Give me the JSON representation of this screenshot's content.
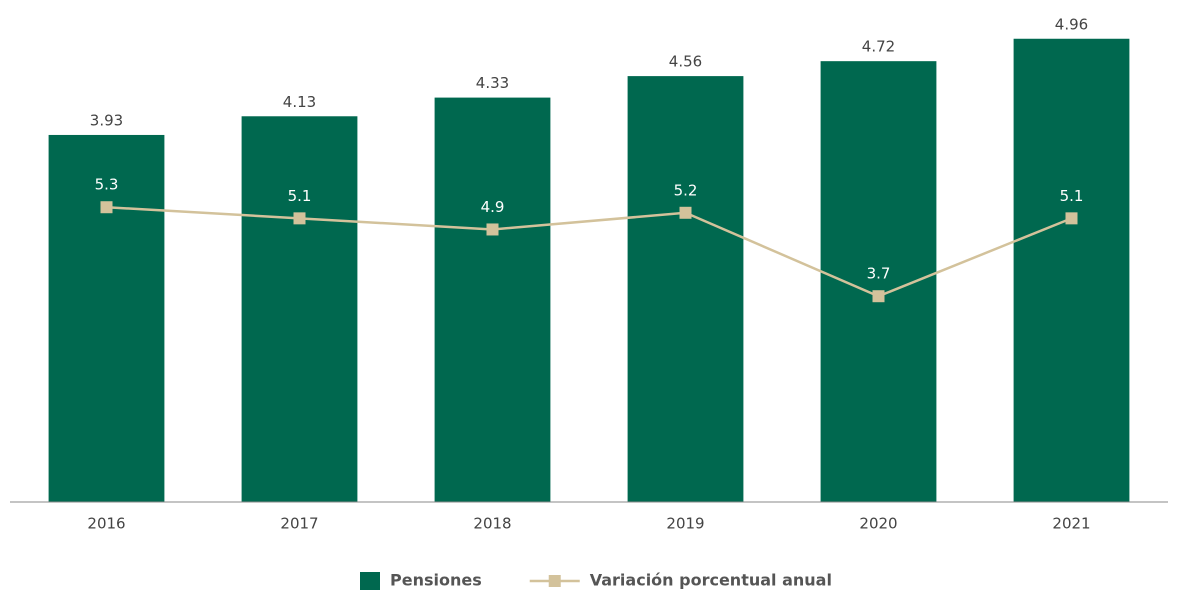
{
  "chart_data": {
    "type": "bar-line",
    "categories": [
      "2016",
      "2017",
      "2018",
      "2019",
      "2020",
      "2021"
    ],
    "series": [
      {
        "name": "Pensiones",
        "type": "bar",
        "color": "#00684f",
        "values": [
          3.93,
          4.13,
          4.33,
          4.56,
          4.72,
          4.96
        ]
      },
      {
        "name": "Variación porcentual anual",
        "type": "line",
        "axis": "y2",
        "color": "#d3c29b",
        "values": [
          5.3,
          5.1,
          4.9,
          5.2,
          3.7,
          5.1
        ]
      }
    ],
    "ylim": [
      0,
      5.3
    ],
    "y2lim": [
      0,
      8.9
    ],
    "legend": "bottom"
  }
}
